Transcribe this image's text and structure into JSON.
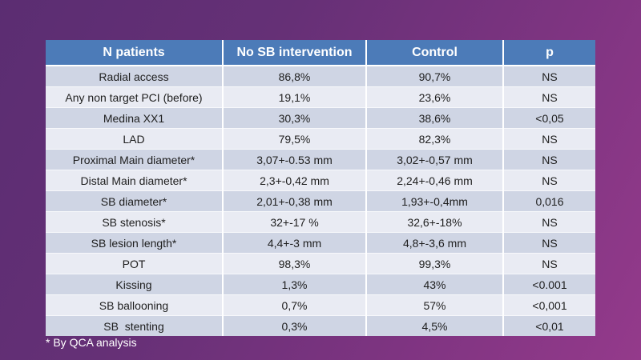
{
  "table": {
    "columns": [
      "N patients",
      "No SB intervention",
      "Control",
      "p"
    ],
    "rows": [
      [
        "Radial access",
        "86,8%",
        "90,7%",
        "NS"
      ],
      [
        "Any non target PCI (before)",
        "19,1%",
        "23,6%",
        "NS"
      ],
      [
        "Medina XX1",
        "30,3%",
        "38,6%",
        "<0,05"
      ],
      [
        "LAD",
        "79,5%",
        "82,3%",
        "NS"
      ],
      [
        "Proximal Main diameter*",
        "3,07+-0.53 mm",
        "3,02+-0,57 mm",
        "NS"
      ],
      [
        "Distal Main diameter*",
        "2,3+-0,42 mm",
        "2,24+-0,46 mm",
        "NS"
      ],
      [
        "SB diameter*",
        "2,01+-0,38 mm",
        "1,93+-0,4mm",
        "0,016"
      ],
      [
        "SB stenosis*",
        "32+-17 %",
        "32,6+-18%",
        "NS"
      ],
      [
        "SB lesion length*",
        "4,4+-3 mm",
        "4,8+-3,6 mm",
        "NS"
      ],
      [
        "POT",
        "98,3%",
        "99,3%",
        "NS"
      ],
      [
        "Kissing",
        "1,3%",
        "43%",
        "<0.001"
      ],
      [
        "SB ballooning",
        "0,7%",
        "57%",
        "<0,001"
      ],
      [
        "SB  stenting",
        "0,3%",
        "4,5%",
        "<0,01"
      ]
    ]
  },
  "footnote": "* By QCA analysis",
  "colors": {
    "background_top_left": "#5b2d72",
    "background_bottom_right": "#943a8b",
    "header_background": "#4c7bb8",
    "row_odd": "#cfd5e4",
    "row_even": "#e9ebf3",
    "header_text": "#ffffff",
    "cell_text": "#1e1e1e",
    "footnote_text": "#ffffff"
  },
  "chart_data": {
    "type": "table",
    "title": "",
    "columns": [
      "N patients",
      "No SB intervention",
      "Control",
      "p"
    ],
    "rows": [
      [
        "Radial access",
        "86,8%",
        "90,7%",
        "NS"
      ],
      [
        "Any non target PCI (before)",
        "19,1%",
        "23,6%",
        "NS"
      ],
      [
        "Medina XX1",
        "30,3%",
        "38,6%",
        "<0,05"
      ],
      [
        "LAD",
        "79,5%",
        "82,3%",
        "NS"
      ],
      [
        "Proximal Main diameter*",
        "3,07+-0.53 mm",
        "3,02+-0,57 mm",
        "NS"
      ],
      [
        "Distal Main diameter*",
        "2,3+-0,42 mm",
        "2,24+-0,46 mm",
        "NS"
      ],
      [
        "SB diameter*",
        "2,01+-0,38 mm",
        "1,93+-0,4mm",
        "0,016"
      ],
      [
        "SB stenosis*",
        "32+-17 %",
        "32,6+-18%",
        "NS"
      ],
      [
        "SB lesion length*",
        "4,4+-3 mm",
        "4,8+-3,6 mm",
        "NS"
      ],
      [
        "POT",
        "98,3%",
        "99,3%",
        "NS"
      ],
      [
        "Kissing",
        "1,3%",
        "43%",
        "<0.001"
      ],
      [
        "SB ballooning",
        "0,7%",
        "57%",
        "<0,001"
      ],
      [
        "SB  stenting",
        "0,3%",
        "4,5%",
        "<0,01"
      ]
    ],
    "footnote": "* By QCA analysis"
  }
}
